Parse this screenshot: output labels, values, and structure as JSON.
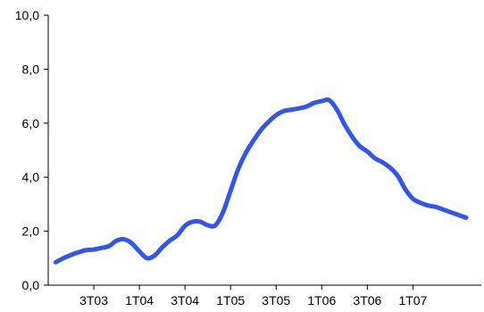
{
  "chart_data": {
    "type": "line",
    "title": "",
    "xlabel": "",
    "ylabel": "",
    "ylim": [
      0,
      10
    ],
    "yticks": [
      0,
      2,
      4,
      6,
      8,
      10
    ],
    "ytick_labels": [
      "0,0",
      "2,0",
      "4,0",
      "6,0",
      "8,0",
      "10,0"
    ],
    "xlim": [
      0,
      57
    ],
    "xtick_positions": [
      6,
      12,
      18,
      24,
      30,
      36,
      42,
      48
    ],
    "xtick_labels": [
      "3T03",
      "1T04",
      "3T04",
      "1T05",
      "3T05",
      "1T06",
      "3T06",
      "1T07"
    ],
    "grid": false,
    "legend": "none",
    "series": [
      {
        "color": "#3355EE",
        "x": [
          1,
          2,
          3,
          4,
          5,
          6,
          7,
          8,
          9,
          10,
          11,
          12,
          13,
          14,
          15,
          16,
          17,
          18,
          19,
          20,
          21,
          22,
          23,
          24,
          25,
          26,
          27,
          28,
          29,
          30,
          31,
          32,
          33,
          34,
          35,
          36,
          37,
          38,
          39,
          40,
          41,
          42,
          43,
          44,
          45,
          46,
          47,
          48,
          49,
          50,
          51,
          52,
          53,
          54,
          55
        ],
        "values": [
          0.85,
          1.0,
          1.12,
          1.22,
          1.3,
          1.32,
          1.38,
          1.45,
          1.65,
          1.7,
          1.55,
          1.25,
          1.0,
          1.1,
          1.4,
          1.65,
          1.85,
          2.2,
          2.35,
          2.35,
          2.22,
          2.22,
          2.7,
          3.5,
          4.3,
          4.9,
          5.35,
          5.75,
          6.05,
          6.3,
          6.45,
          6.5,
          6.55,
          6.62,
          6.75,
          6.82,
          6.85,
          6.5,
          5.95,
          5.5,
          5.15,
          4.95,
          4.7,
          4.55,
          4.35,
          4.05,
          3.55,
          3.2,
          3.05,
          2.95,
          2.9,
          2.8,
          2.7,
          2.6,
          2.5
        ]
      }
    ]
  }
}
